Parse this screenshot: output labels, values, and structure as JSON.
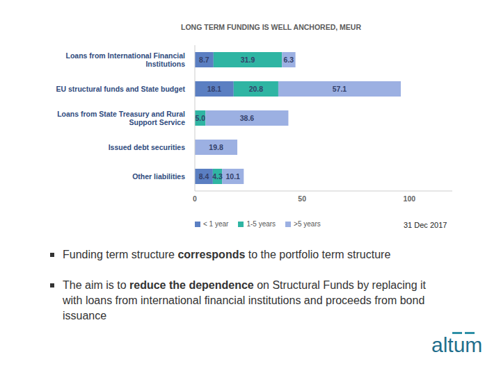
{
  "chart_data": {
    "type": "bar",
    "orientation": "horizontal",
    "stacked": true,
    "data_labels": true,
    "grid": false,
    "legend": "bottom",
    "title": "LONG TERM FUNDING IS WELL ANCHORED, MEUR",
    "categories": [
      "Loans from International Financial Institutions",
      "EU structural funds and State budget",
      "Loans from State Treasury and Rural Support Service",
      "Issued debt securities",
      "Other liabilities"
    ],
    "series": [
      {
        "name": "< 1 year",
        "color": "#5b7fc2",
        "values": [
          8.7,
          18.1,
          null,
          null,
          8.4
        ]
      },
      {
        "name": "1-5 years",
        "color": "#2fb5a3",
        "values": [
          31.9,
          20.8,
          5.0,
          null,
          4.3
        ],
        "value_labels": [
          "31.9",
          "20.8",
          "5.0",
          null,
          "4.3"
        ]
      },
      {
        "name": ">5 years",
        "color": "#9cb0e2",
        "values": [
          6.3,
          57.1,
          38.6,
          19.8,
          10.1
        ]
      }
    ],
    "xlim": [
      0,
      120
    ],
    "xticks": [
      0,
      50,
      100
    ]
  },
  "date": "31 Dec 2017",
  "bullets": [
    [
      {
        "text": "Funding term structure "
      },
      {
        "text": "corresponds",
        "bold": true
      },
      {
        "text": " to the portfolio term structure"
      }
    ],
    [
      {
        "text": "The aim is to "
      },
      {
        "text": "reduce the dependence",
        "bold": true
      },
      {
        "text": " on Structural Funds by replacing it with loans from international financial institutions and proceeds from bond issuance"
      }
    ]
  ],
  "logo": "altum"
}
